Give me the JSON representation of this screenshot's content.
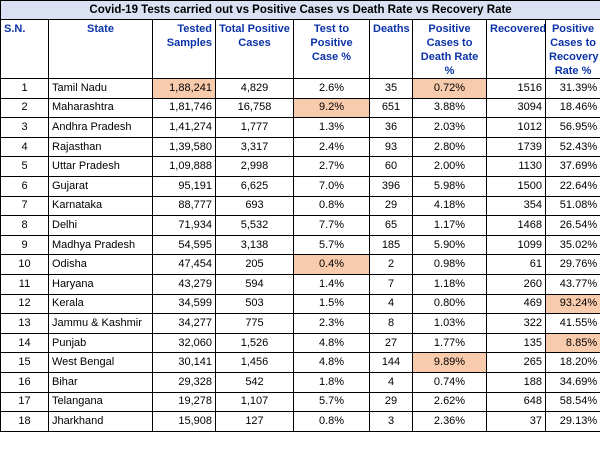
{
  "title": "Covid-19  Tests carried out vs Positive Cases vs Death Rate vs Recovery Rate",
  "colors": {
    "header_text": "#0b33a8",
    "title_bg": "#d9e1f2",
    "highlight_bg": "#f8cbad"
  },
  "headers": [
    "S.N.",
    "State",
    "Tested Samples",
    "Total Positive Cases",
    "Test to Positive Case %",
    "Deaths",
    "Positive Cases to Death Rate %",
    "Recovered",
    "Positive Cases to Recovery Rate %"
  ],
  "rows": [
    {
      "sn": "1",
      "state": "Tamil Nadu",
      "tested": "1,88,241",
      "positive": "4,829",
      "test_to_positive": "2.6%",
      "deaths": "35",
      "death_rate": "0.72%",
      "recovered": "1516",
      "recovery_rate": "31.39%",
      "highlights": [
        "tested",
        "death_rate"
      ]
    },
    {
      "sn": "2",
      "state": "Maharashtra",
      "tested": "1,81,746",
      "positive": "16,758",
      "test_to_positive": "9.2%",
      "deaths": "651",
      "death_rate": "3.88%",
      "recovered": "3094",
      "recovery_rate": "18.46%",
      "highlights": [
        "test_to_positive"
      ]
    },
    {
      "sn": "3",
      "state": "Andhra Pradesh",
      "tested": "1,41,274",
      "positive": "1,777",
      "test_to_positive": "1.3%",
      "deaths": "36",
      "death_rate": "2.03%",
      "recovered": "1012",
      "recovery_rate": "56.95%",
      "highlights": []
    },
    {
      "sn": "4",
      "state": "Rajasthan",
      "tested": "1,39,580",
      "positive": "3,317",
      "test_to_positive": "2.4%",
      "deaths": "93",
      "death_rate": "2.80%",
      "recovered": "1739",
      "recovery_rate": "52.43%",
      "highlights": []
    },
    {
      "sn": "5",
      "state": "Uttar Pradesh",
      "tested": "1,09,888",
      "positive": "2,998",
      "test_to_positive": "2.7%",
      "deaths": "60",
      "death_rate": "2.00%",
      "recovered": "1130",
      "recovery_rate": "37.69%",
      "highlights": []
    },
    {
      "sn": "6",
      "state": "Gujarat",
      "tested": "95,191",
      "positive": "6,625",
      "test_to_positive": "7.0%",
      "deaths": "396",
      "death_rate": "5.98%",
      "recovered": "1500",
      "recovery_rate": "22.64%",
      "highlights": []
    },
    {
      "sn": "7",
      "state": "Karnataka",
      "tested": "88,777",
      "positive": "693",
      "test_to_positive": "0.8%",
      "deaths": "29",
      "death_rate": "4.18%",
      "recovered": "354",
      "recovery_rate": "51.08%",
      "highlights": []
    },
    {
      "sn": "8",
      "state": "Delhi",
      "tested": "71,934",
      "positive": "5,532",
      "test_to_positive": "7.7%",
      "deaths": "65",
      "death_rate": "1.17%",
      "recovered": "1468",
      "recovery_rate": "26.54%",
      "highlights": []
    },
    {
      "sn": "9",
      "state": "Madhya Pradesh",
      "tested": "54,595",
      "positive": "3,138",
      "test_to_positive": "5.7%",
      "deaths": "185",
      "death_rate": "5.90%",
      "recovered": "1099",
      "recovery_rate": "35.02%",
      "highlights": []
    },
    {
      "sn": "10",
      "state": "Odisha",
      "tested": "47,454",
      "positive": "205",
      "test_to_positive": "0.4%",
      "deaths": "2",
      "death_rate": "0.98%",
      "recovered": "61",
      "recovery_rate": "29.76%",
      "highlights": [
        "test_to_positive"
      ]
    },
    {
      "sn": "11",
      "state": "Haryana",
      "tested": "43,279",
      "positive": "594",
      "test_to_positive": "1.4%",
      "deaths": "7",
      "death_rate": "1.18%",
      "recovered": "260",
      "recovery_rate": "43.77%",
      "highlights": []
    },
    {
      "sn": "12",
      "state": "Kerala",
      "tested": "34,599",
      "positive": "503",
      "test_to_positive": "1.5%",
      "deaths": "4",
      "death_rate": "0.80%",
      "recovered": "469",
      "recovery_rate": "93.24%",
      "highlights": [
        "recovery_rate"
      ]
    },
    {
      "sn": "13",
      "state": "Jammu & Kashmir",
      "tested": "34,277",
      "positive": "775",
      "test_to_positive": "2.3%",
      "deaths": "8",
      "death_rate": "1.03%",
      "recovered": "322",
      "recovery_rate": "41.55%",
      "highlights": []
    },
    {
      "sn": "14",
      "state": "Punjab",
      "tested": "32,060",
      "positive": "1,526",
      "test_to_positive": "4.8%",
      "deaths": "27",
      "death_rate": "1.77%",
      "recovered": "135",
      "recovery_rate": "8.85%",
      "highlights": [
        "recovery_rate"
      ]
    },
    {
      "sn": "15",
      "state": "West Bengal",
      "tested": "30,141",
      "positive": "1,456",
      "test_to_positive": "4.8%",
      "deaths": "144",
      "death_rate": "9.89%",
      "recovered": "265",
      "recovery_rate": "18.20%",
      "highlights": [
        "death_rate"
      ]
    },
    {
      "sn": "16",
      "state": "Bihar",
      "tested": "29,328",
      "positive": "542",
      "test_to_positive": "1.8%",
      "deaths": "4",
      "death_rate": "0.74%",
      "recovered": "188",
      "recovery_rate": "34.69%",
      "highlights": []
    },
    {
      "sn": "17",
      "state": "Telangana",
      "tested": "19,278",
      "positive": "1,107",
      "test_to_positive": "5.7%",
      "deaths": "29",
      "death_rate": "2.62%",
      "recovered": "648",
      "recovery_rate": "58.54%",
      "highlights": []
    },
    {
      "sn": "18",
      "state": "Jharkhand",
      "tested": "15,908",
      "positive": "127",
      "test_to_positive": "0.8%",
      "deaths": "3",
      "death_rate": "2.36%",
      "recovered": "37",
      "recovery_rate": "29.13%",
      "highlights": []
    }
  ]
}
